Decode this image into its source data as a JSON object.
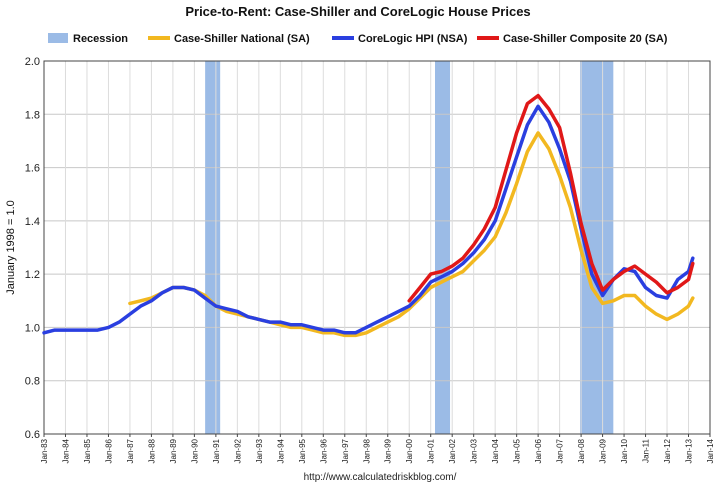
{
  "chart_data": {
    "type": "line",
    "title": "Price-to-Rent: Case-Shiller and CoreLogic House Prices",
    "xlabel": "",
    "ylabel": "January 1998 = 1.0",
    "ylim": [
      0.6,
      2.0
    ],
    "yticks": [
      "0.6",
      "0.8",
      "1.0",
      "1.2",
      "1.4",
      "1.6",
      "1.8",
      "2.0"
    ],
    "x_range_years": [
      1983.0,
      2014.0
    ],
    "xticks": [
      "Jan-83",
      "Jan-84",
      "Jan-85",
      "Jan-86",
      "Jan-87",
      "Jan-88",
      "Jan-89",
      "Jan-90",
      "Jan-91",
      "Jan-92",
      "Jan-93",
      "Jan-94",
      "Jan-95",
      "Jan-96",
      "Jan-97",
      "Jan-98",
      "Jan-99",
      "Jan-00",
      "Jan-01",
      "Jan-02",
      "Jan-03",
      "Jan-04",
      "Jan-05",
      "Jan-06",
      "Jan-07",
      "Jan-08",
      "Jan-09",
      "Jan-10",
      "Jan-11",
      "Jan-12",
      "Jan-13",
      "Jan-14"
    ],
    "grid": true,
    "legend_position": "top",
    "source": "http://www.calculatedriskblog.com/",
    "recessions": [
      {
        "start": 1990.5,
        "end": 1991.2
      },
      {
        "start": 2001.2,
        "end": 2001.9
      },
      {
        "start": 2007.95,
        "end": 2009.5
      }
    ],
    "series": [
      {
        "name": "Case-Shiller National (SA)",
        "color": "#f2b820",
        "x": [
          1987.0,
          1987.5,
          1988.0,
          1988.5,
          1989.0,
          1989.5,
          1990.0,
          1990.5,
          1991.0,
          1991.5,
          1992.0,
          1992.5,
          1993.0,
          1993.5,
          1994.0,
          1994.5,
          1995.0,
          1995.5,
          1996.0,
          1996.5,
          1997.0,
          1997.5,
          1998.0,
          1998.5,
          1999.0,
          1999.5,
          2000.0,
          2000.5,
          2001.0,
          2001.5,
          2002.0,
          2002.5,
          2003.0,
          2003.5,
          2004.0,
          2004.5,
          2005.0,
          2005.5,
          2006.0,
          2006.5,
          2007.0,
          2007.5,
          2008.0,
          2008.5,
          2009.0,
          2009.5,
          2010.0,
          2010.5,
          2011.0,
          2011.5,
          2012.0,
          2012.5,
          2013.0,
          2013.2
        ],
        "values": [
          1.09,
          1.1,
          1.11,
          1.13,
          1.15,
          1.15,
          1.14,
          1.12,
          1.08,
          1.06,
          1.05,
          1.04,
          1.03,
          1.02,
          1.01,
          1.0,
          1.0,
          0.99,
          0.98,
          0.98,
          0.97,
          0.97,
          0.98,
          1.0,
          1.02,
          1.04,
          1.07,
          1.11,
          1.15,
          1.17,
          1.19,
          1.21,
          1.25,
          1.29,
          1.34,
          1.43,
          1.54,
          1.66,
          1.73,
          1.67,
          1.57,
          1.45,
          1.29,
          1.15,
          1.09,
          1.1,
          1.12,
          1.12,
          1.08,
          1.05,
          1.03,
          1.05,
          1.08,
          1.11
        ]
      },
      {
        "name": "CoreLogic HPI (NSA)",
        "color": "#2a3fe0",
        "x": [
          1983.0,
          1983.5,
          1984.0,
          1984.5,
          1985.0,
          1985.5,
          1986.0,
          1986.5,
          1987.0,
          1987.5,
          1988.0,
          1988.5,
          1989.0,
          1989.5,
          1990.0,
          1990.5,
          1991.0,
          1991.5,
          1992.0,
          1992.5,
          1993.0,
          1993.5,
          1994.0,
          1994.5,
          1995.0,
          1995.5,
          1996.0,
          1996.5,
          1997.0,
          1997.5,
          1998.0,
          1998.5,
          1999.0,
          1999.5,
          2000.0,
          2000.5,
          2001.0,
          2001.5,
          2002.0,
          2002.5,
          2003.0,
          2003.5,
          2004.0,
          2004.5,
          2005.0,
          2005.5,
          2006.0,
          2006.5,
          2007.0,
          2007.5,
          2008.0,
          2008.5,
          2009.0,
          2009.5,
          2010.0,
          2010.5,
          2011.0,
          2011.5,
          2012.0,
          2012.5,
          2013.0,
          2013.2
        ],
        "values": [
          0.98,
          0.99,
          0.99,
          0.99,
          0.99,
          0.99,
          1.0,
          1.02,
          1.05,
          1.08,
          1.1,
          1.13,
          1.15,
          1.15,
          1.14,
          1.11,
          1.08,
          1.07,
          1.06,
          1.04,
          1.03,
          1.02,
          1.02,
          1.01,
          1.01,
          1.0,
          0.99,
          0.99,
          0.98,
          0.98,
          1.0,
          1.02,
          1.04,
          1.06,
          1.08,
          1.12,
          1.17,
          1.19,
          1.21,
          1.24,
          1.28,
          1.33,
          1.4,
          1.52,
          1.64,
          1.76,
          1.83,
          1.77,
          1.67,
          1.55,
          1.37,
          1.2,
          1.12,
          1.18,
          1.22,
          1.21,
          1.15,
          1.12,
          1.11,
          1.18,
          1.21,
          1.26
        ]
      },
      {
        "name": "Case-Shiller Composite 20 (SA)",
        "color": "#e01818",
        "x": [
          2000.0,
          2000.5,
          2001.0,
          2001.5,
          2002.0,
          2002.5,
          2003.0,
          2003.5,
          2004.0,
          2004.5,
          2005.0,
          2005.5,
          2006.0,
          2006.5,
          2007.0,
          2007.5,
          2008.0,
          2008.5,
          2009.0,
          2009.5,
          2010.0,
          2010.5,
          2011.0,
          2011.5,
          2012.0,
          2012.5,
          2013.0,
          2013.2
        ],
        "values": [
          1.1,
          1.15,
          1.2,
          1.21,
          1.23,
          1.26,
          1.31,
          1.37,
          1.45,
          1.59,
          1.73,
          1.84,
          1.87,
          1.82,
          1.75,
          1.58,
          1.39,
          1.24,
          1.14,
          1.18,
          1.21,
          1.23,
          1.2,
          1.17,
          1.13,
          1.15,
          1.18,
          1.24
        ]
      }
    ]
  },
  "legend": {
    "recession_label": "Recession",
    "recession_color": "#9bbbe6"
  }
}
